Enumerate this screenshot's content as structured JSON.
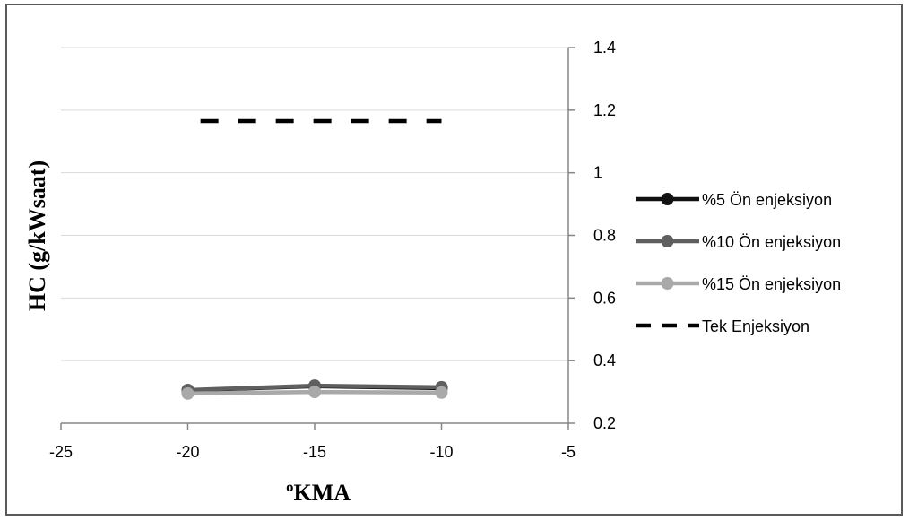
{
  "chart_data": {
    "type": "line",
    "title": "",
    "xlabel": "ºKMA",
    "ylabel": "HC (g/kWsaat)",
    "xlim": [
      -25,
      -5
    ],
    "ylim": [
      0.2,
      1.4
    ],
    "x_ticks": [
      -25,
      -20,
      -15,
      -10,
      -5
    ],
    "y_ticks": [
      0.2,
      0.4,
      0.6,
      0.8,
      1,
      1.2,
      1.4
    ],
    "y_axis_side": "right",
    "grid": "horizontal",
    "legend_position": "right",
    "x": [
      -20,
      -15,
      -10
    ],
    "series": [
      {
        "name": "%5 Ön enjeksiyon",
        "values": [
          0.305,
          0.318,
          0.312
        ],
        "color": "#111111",
        "style": "solid-marker"
      },
      {
        "name": "%10 Ön enjeksiyon",
        "values": [
          0.306,
          0.32,
          0.315
        ],
        "color": "#5f5f5f",
        "style": "solid-marker"
      },
      {
        "name": "%15 Ön enjeksiyon",
        "values": [
          0.295,
          0.3,
          0.298
        ],
        "color": "#a9a9a9",
        "style": "solid-marker"
      },
      {
        "name": "Tek Enjeksiyon",
        "x": [
          -19.5,
          -10
        ],
        "values": [
          1.165,
          1.165
        ],
        "color": "#000000",
        "style": "dashed"
      }
    ]
  }
}
